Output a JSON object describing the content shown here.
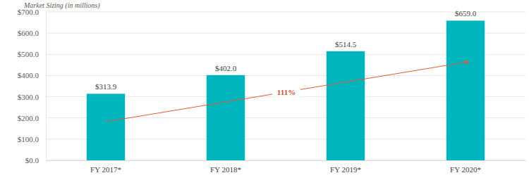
{
  "chart_data": {
    "type": "bar",
    "y_label": "Market Sizing (in millions)",
    "categories": [
      "FY 2017*",
      "FY 2018*",
      "FY 2019*",
      "FY 2020*"
    ],
    "values": [
      313.9,
      402.0,
      514.5,
      659.0
    ],
    "value_labels": [
      "$313.9",
      "$402.0",
      "$514.5",
      "$659.0"
    ],
    "color": "#00b5bd",
    "ylim": [
      0,
      700
    ],
    "yticks": [
      {
        "value": 0,
        "label": "$0.0"
      },
      {
        "value": 100,
        "label": "$100.0"
      },
      {
        "value": 200,
        "label": "$200.0"
      },
      {
        "value": 300,
        "label": "$300.0"
      },
      {
        "value": 400,
        "label": "$400.0"
      },
      {
        "value": 500,
        "label": "$500.0"
      },
      {
        "value": 600,
        "label": "$600.0"
      },
      {
        "value": 700,
        "label": "$700.0"
      }
    ],
    "grid": true,
    "data_labels": true,
    "annotations": [
      {
        "text": "111%"
      }
    ]
  }
}
